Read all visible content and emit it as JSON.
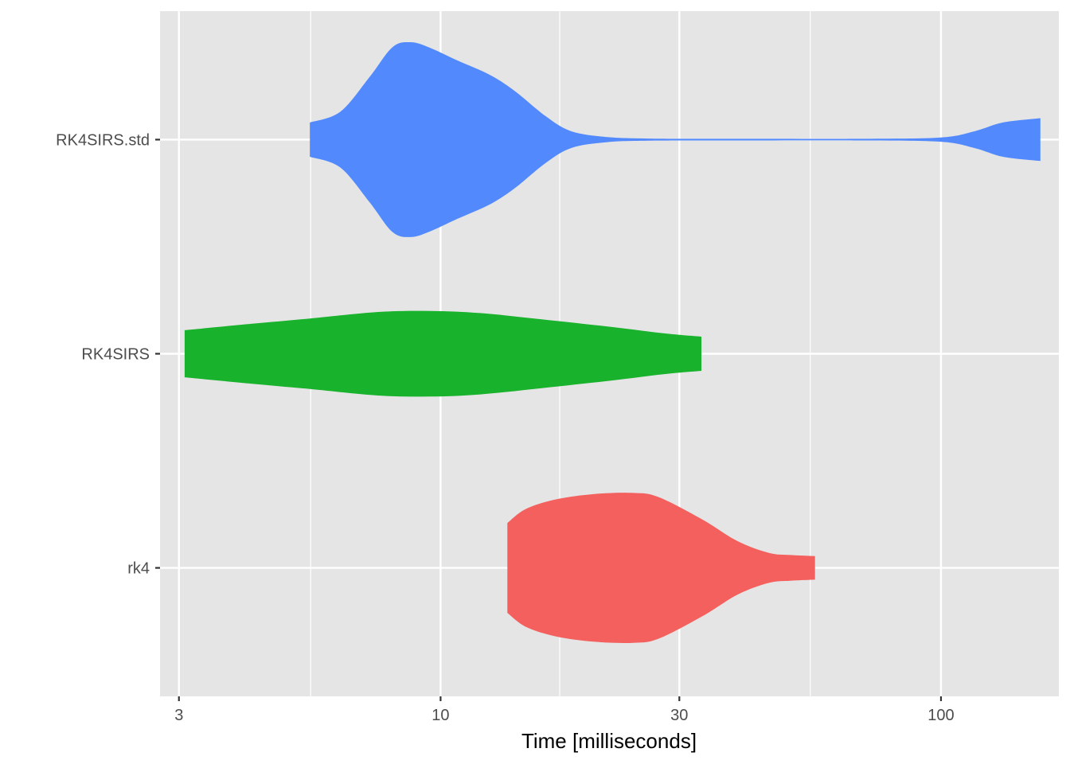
{
  "chart_data": {
    "type": "violin",
    "orientation": "horizontal",
    "title": "",
    "xlabel": "Time [milliseconds]",
    "ylabel": "",
    "x_scale": "log10",
    "xlim": [
      2.75,
      172
    ],
    "x_ticks": [
      3,
      10,
      30,
      100
    ],
    "x_tick_labels": [
      "3",
      "10",
      "30",
      "100"
    ],
    "x_minor_ticks": [
      5.5,
      17.3,
      54.8
    ],
    "grid": true,
    "legend": "none",
    "categories": [
      "RK4SIRS.std",
      "RK4SIRS",
      "rk4"
    ],
    "series": [
      {
        "category": "RK4SIRS.std",
        "color": "#528afe",
        "min": 5.48,
        "max": 158,
        "profile": [
          [
            5.48,
            0.16
          ],
          [
            6.3,
            0.26
          ],
          [
            7.2,
            0.58
          ],
          [
            8.0,
            0.86
          ],
          [
            8.7,
            0.91
          ],
          [
            9.5,
            0.86
          ],
          [
            10.8,
            0.74
          ],
          [
            12.6,
            0.6
          ],
          [
            14.1,
            0.45
          ],
          [
            16.2,
            0.22
          ],
          [
            18.2,
            0.08
          ],
          [
            21.4,
            0.025
          ],
          [
            26,
            0.01
          ],
          [
            40,
            0.008
          ],
          [
            70,
            0.008
          ],
          [
            100,
            0.02
          ],
          [
            117,
            0.08
          ],
          [
            133,
            0.16
          ],
          [
            158,
            0.2
          ]
        ]
      },
      {
        "category": "RK4SIRS",
        "color": "#18b22c",
        "min": 3.08,
        "max": 33.2,
        "profile": [
          [
            3.08,
            0.22
          ],
          [
            4.2,
            0.28
          ],
          [
            5.5,
            0.33
          ],
          [
            7.5,
            0.39
          ],
          [
            9.5,
            0.4
          ],
          [
            12.0,
            0.38
          ],
          [
            16,
            0.32
          ],
          [
            22,
            0.25
          ],
          [
            28,
            0.19
          ],
          [
            33.2,
            0.16
          ]
        ]
      },
      {
        "category": "rk4",
        "color": "#f3605d",
        "min": 13.6,
        "max": 56.0,
        "profile": [
          [
            13.6,
            0.42
          ],
          [
            14.8,
            0.55
          ],
          [
            17.0,
            0.64
          ],
          [
            20.3,
            0.69
          ],
          [
            24.3,
            0.7
          ],
          [
            27.3,
            0.66
          ],
          [
            33.4,
            0.45
          ],
          [
            39.2,
            0.25
          ],
          [
            45.3,
            0.14
          ],
          [
            50.0,
            0.12
          ],
          [
            56.0,
            0.11
          ]
        ]
      }
    ]
  }
}
